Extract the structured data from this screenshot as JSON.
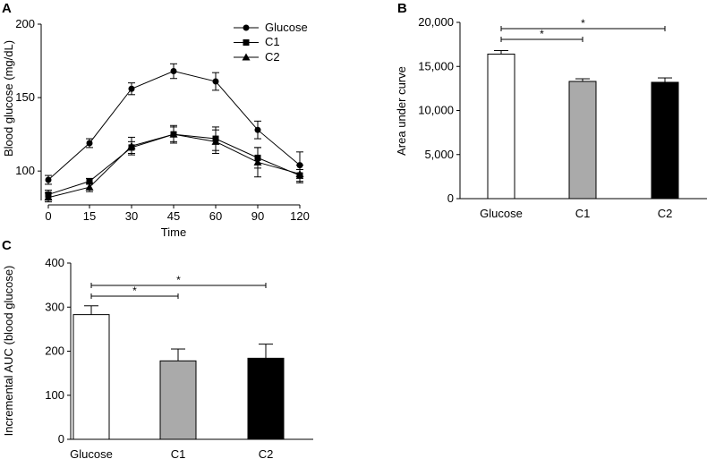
{
  "panels": {
    "a": "A",
    "b": "B",
    "c": "C"
  },
  "chart_data": [
    {
      "type": "line",
      "panel": "A",
      "xlabel": "Time",
      "ylabel": "Blood glucose (mg/dL)",
      "x": [
        0,
        15,
        30,
        45,
        60,
        90,
        120
      ],
      "x_tick_labels": [
        "0",
        "15",
        "30",
        "45",
        "60",
        "90",
        "120"
      ],
      "ylim": [
        80,
        200
      ],
      "y_ticks": [
        100,
        150,
        200
      ],
      "legend_position": "top-right",
      "series": [
        {
          "name": "Glucose",
          "marker": "circle",
          "values": [
            94,
            119,
            156,
            168,
            161,
            128,
            104
          ],
          "errors": [
            3,
            3,
            4,
            5,
            6,
            6,
            9
          ]
        },
        {
          "name": "C1",
          "marker": "square",
          "values": [
            84,
            93,
            116,
            125,
            122,
            109,
            97
          ],
          "errors": [
            3,
            2,
            4,
            5,
            8,
            7,
            4
          ]
        },
        {
          "name": "C2",
          "marker": "triangle",
          "values": [
            82,
            89,
            117,
            125,
            120,
            106,
            98
          ],
          "errors": [
            3,
            3,
            6,
            6,
            8,
            10,
            6
          ]
        }
      ]
    },
    {
      "type": "bar",
      "panel": "B",
      "ylabel": "Area under curve",
      "categories": [
        "Glucose",
        "C1",
        "C2"
      ],
      "values": [
        16400,
        13300,
        13200
      ],
      "errors": [
        400,
        300,
        500
      ],
      "colors": [
        "#ffffff",
        "#aaaaaa",
        "#000000"
      ],
      "ylim": [
        0,
        20000
      ],
      "y_ticks": [
        0,
        5000,
        10000,
        15000,
        20000
      ],
      "y_tick_labels": [
        "0",
        "5,000",
        "10,000",
        "15,000",
        "20,000"
      ],
      "significance": [
        {
          "from": 0,
          "to": 1,
          "label": "*"
        },
        {
          "from": 0,
          "to": 2,
          "label": "*"
        }
      ]
    },
    {
      "type": "bar",
      "panel": "C",
      "ylabel": "Incremental AUC (blood glucose)",
      "categories": [
        "Glucose",
        "C1",
        "C2"
      ],
      "values": [
        283,
        178,
        184
      ],
      "errors": [
        20,
        27,
        32
      ],
      "colors": [
        "#ffffff",
        "#aaaaaa",
        "#000000"
      ],
      "ylim": [
        0,
        400
      ],
      "y_ticks": [
        0,
        100,
        200,
        300,
        400
      ],
      "y_tick_labels": [
        "0",
        "100",
        "200",
        "300",
        "400"
      ],
      "significance": [
        {
          "from": 0,
          "to": 1,
          "label": "*"
        },
        {
          "from": 0,
          "to": 2,
          "label": "*"
        }
      ]
    }
  ]
}
